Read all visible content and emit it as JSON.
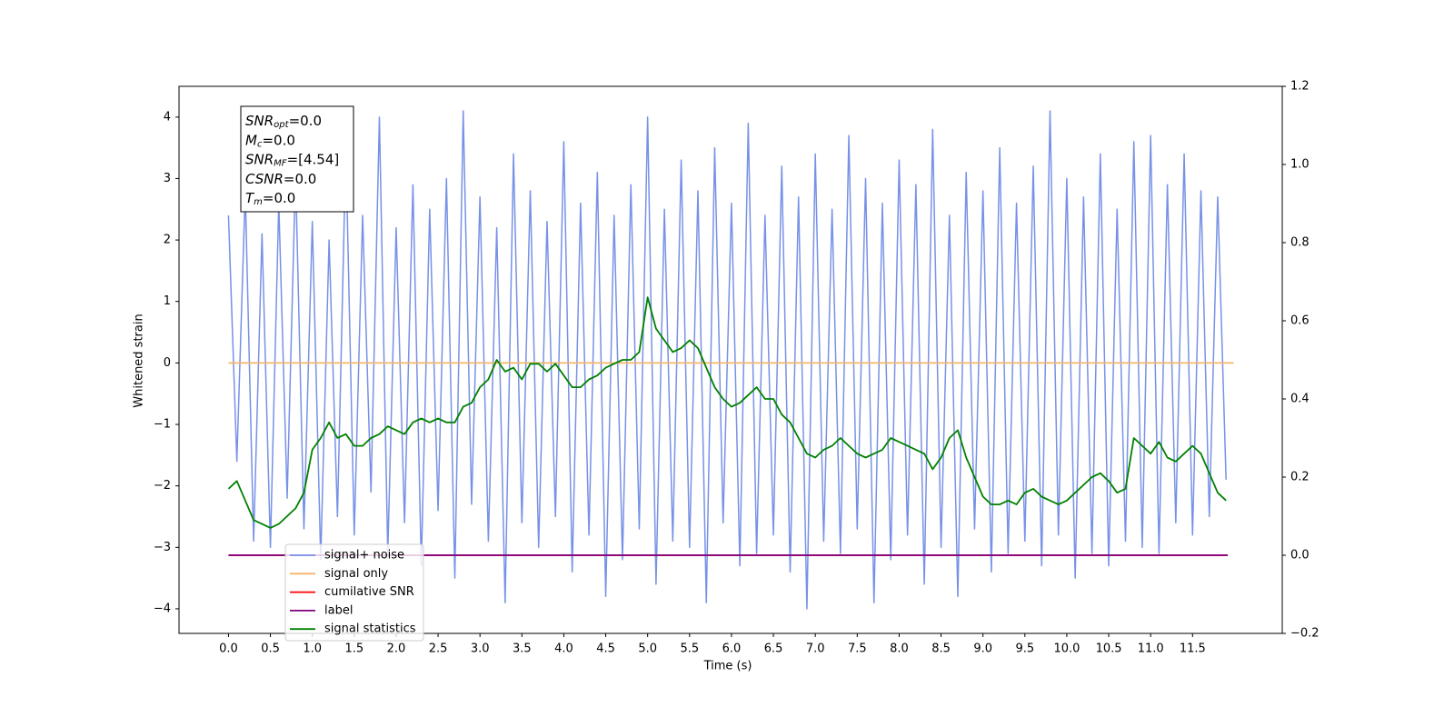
{
  "chart_data": {
    "type": "line",
    "xlabel": "Time (s)",
    "ylabel": "Whitened strain",
    "annotation": [
      {
        "base": "SNR",
        "sub": "opt",
        "rest": "=0.0"
      },
      {
        "base": "M",
        "sub": "c",
        "rest": "=0.0"
      },
      {
        "base": "SNR",
        "sub": "MF",
        "rest": "=[4.54]"
      },
      {
        "base": "CSNR",
        "rest": "=0.0"
      },
      {
        "base": "T",
        "sub": "m",
        "rest": "=0.0"
      }
    ],
    "legend": "lower left",
    "xlim": [
      -0.59,
      12.57
    ],
    "ylim": [
      -4.4,
      4.5
    ],
    "y2lim": [
      -0.2,
      1.2
    ],
    "xticks": [
      {
        "value": 0,
        "label": "0.0"
      },
      0.5,
      {
        "value": 1,
        "label": "1.0"
      },
      1.5,
      {
        "value": 2,
        "label": "2.0"
      },
      2.5,
      {
        "value": 3,
        "label": "3.0"
      },
      3.5,
      {
        "value": 4,
        "label": "4.0"
      },
      4.5,
      {
        "value": 5,
        "label": "5.0"
      },
      5.5,
      {
        "value": 6,
        "label": "6.0"
      },
      6.5,
      {
        "value": 7,
        "label": "7.0"
      },
      7.5,
      {
        "value": 8,
        "label": "8.0"
      },
      8.5,
      {
        "value": 9,
        "label": "9.0"
      },
      9.5,
      {
        "value": 10,
        "label": "10.0"
      },
      10.5,
      {
        "value": 11,
        "label": "11.0"
      },
      11.5
    ],
    "yticks": [
      {
        "value": -4,
        "label": "−4"
      },
      {
        "value": -3,
        "label": "−3"
      },
      {
        "value": -2,
        "label": "−2"
      },
      {
        "value": -1,
        "label": "−1"
      },
      0,
      1,
      2,
      3,
      4
    ],
    "y2ticks": [
      {
        "value": -0.2,
        "label": "−0.2"
      },
      {
        "value": 0,
        "label": "0.0"
      },
      0.2,
      0.4,
      0.6,
      0.8,
      {
        "value": 1,
        "label": "1.0"
      },
      1.2
    ],
    "x": [
      0.0,
      0.1,
      0.2,
      0.3,
      0.4,
      0.5,
      0.6,
      0.7,
      0.8,
      0.9,
      1.0,
      1.1,
      1.2,
      1.3,
      1.4,
      1.5,
      1.6,
      1.7,
      1.8,
      1.9,
      2.0,
      2.1,
      2.2,
      2.3,
      2.4,
      2.5,
      2.6,
      2.7,
      2.8,
      2.9,
      3.0,
      3.1,
      3.2,
      3.3,
      3.4,
      3.5,
      3.6,
      3.7,
      3.8,
      3.9,
      4.0,
      4.1,
      4.2,
      4.3,
      4.4,
      4.5,
      4.6,
      4.7,
      4.8,
      4.9,
      5.0,
      5.1,
      5.2,
      5.3,
      5.4,
      5.5,
      5.6,
      5.7,
      5.8,
      5.9,
      6.0,
      6.1,
      6.2,
      6.3,
      6.4,
      6.5,
      6.6,
      6.7,
      6.8,
      6.9,
      7.0,
      7.1,
      7.2,
      7.3,
      7.4,
      7.5,
      7.6,
      7.7,
      7.8,
      7.9,
      8.0,
      8.1,
      8.2,
      8.3,
      8.4,
      8.5,
      8.6,
      8.7,
      8.8,
      8.9,
      9.0,
      9.1,
      9.2,
      9.3,
      9.4,
      9.5,
      9.6,
      9.7,
      9.8,
      9.9,
      10.0,
      10.1,
      10.2,
      10.3,
      10.4,
      10.5,
      10.6,
      10.7,
      10.8,
      10.9,
      11.0,
      11.1,
      11.2,
      11.3,
      11.4,
      11.5,
      11.6,
      11.7,
      11.8,
      11.9
    ],
    "series": [
      {
        "name": "signal+ noise",
        "color": "#7791e6",
        "values": [
          2.4,
          -1.6,
          2.8,
          -2.9,
          2.1,
          -3.0,
          2.6,
          -2.2,
          3.1,
          -2.7,
          2.3,
          -3.2,
          2.0,
          -2.5,
          3.5,
          -2.8,
          2.4,
          -2.1,
          4.0,
          -3.1,
          2.2,
          -2.6,
          2.9,
          -3.3,
          2.5,
          -2.4,
          3.0,
          -3.5,
          4.1,
          -2.3,
          2.7,
          -2.9,
          2.2,
          -3.9,
          3.4,
          -2.6,
          2.8,
          -3.0,
          2.3,
          -2.5,
          3.6,
          -3.4,
          2.6,
          -2.8,
          3.1,
          -3.8,
          2.4,
          -3.2,
          2.9,
          -2.7,
          4.0,
          -3.6,
          2.5,
          -2.9,
          3.3,
          -3.0,
          2.8,
          -3.9,
          3.5,
          -2.6,
          2.6,
          -3.3,
          3.9,
          -3.1,
          2.4,
          -2.8,
          3.2,
          -3.4,
          2.7,
          -4.0,
          3.4,
          -2.9,
          2.5,
          -3.1,
          3.7,
          -2.7,
          3.0,
          -3.9,
          2.6,
          -3.2,
          3.3,
          -2.8,
          2.9,
          -3.6,
          3.8,
          -3.0,
          2.4,
          -3.8,
          3.1,
          -2.7,
          2.8,
          -3.4,
          3.5,
          -3.1,
          2.6,
          -2.9,
          3.2,
          -3.3,
          4.1,
          -2.8,
          3.0,
          -3.5,
          2.7,
          -3.1,
          3.4,
          -3.3,
          2.5,
          -2.9,
          3.6,
          -3.0,
          3.7,
          -3.1,
          2.9,
          -2.6,
          3.4,
          -2.8,
          2.8,
          -2.5,
          2.7,
          -1.9
        ]
      },
      {
        "name": "signal only",
        "color": "#f5b56b",
        "x": [
          0.0,
          11.99
        ],
        "values": [
          0,
          0
        ]
      },
      {
        "name": "cumilative SNR",
        "color": "#ff0000",
        "axis": "y2",
        "x": [
          0.0,
          11.92
        ],
        "values": [
          0,
          0
        ]
      },
      {
        "name": "label",
        "color": "#800080",
        "axis": "y2",
        "x": [
          0.0,
          11.92
        ],
        "values": [
          0,
          0
        ]
      },
      {
        "name": "signal statistics",
        "color": "#008000",
        "axis": "y2",
        "values": [
          0.17,
          0.19,
          0.14,
          0.09,
          0.08,
          0.07,
          0.08,
          0.1,
          0.12,
          0.16,
          0.27,
          0.3,
          0.34,
          0.3,
          0.31,
          0.28,
          0.28,
          0.3,
          0.31,
          0.33,
          0.32,
          0.31,
          0.34,
          0.35,
          0.34,
          0.35,
          0.34,
          0.34,
          0.38,
          0.39,
          0.43,
          0.45,
          0.5,
          0.47,
          0.48,
          0.45,
          0.49,
          0.49,
          0.47,
          0.49,
          0.46,
          0.43,
          0.43,
          0.45,
          0.46,
          0.48,
          0.49,
          0.5,
          0.5,
          0.52,
          0.66,
          0.58,
          0.55,
          0.52,
          0.53,
          0.55,
          0.53,
          0.48,
          0.43,
          0.4,
          0.38,
          0.39,
          0.41,
          0.43,
          0.4,
          0.4,
          0.36,
          0.34,
          0.3,
          0.26,
          0.25,
          0.27,
          0.28,
          0.3,
          0.28,
          0.26,
          0.25,
          0.26,
          0.27,
          0.3,
          0.29,
          0.28,
          0.27,
          0.26,
          0.22,
          0.25,
          0.3,
          0.32,
          0.25,
          0.2,
          0.15,
          0.13,
          0.13,
          0.14,
          0.13,
          0.16,
          0.17,
          0.15,
          0.14,
          0.13,
          0.14,
          0.16,
          0.18,
          0.2,
          0.21,
          0.19,
          0.16,
          0.17,
          0.3,
          0.28,
          0.26,
          0.29,
          0.25,
          0.24,
          0.26,
          0.28,
          0.26,
          0.21,
          0.16,
          0.14
        ]
      }
    ]
  }
}
